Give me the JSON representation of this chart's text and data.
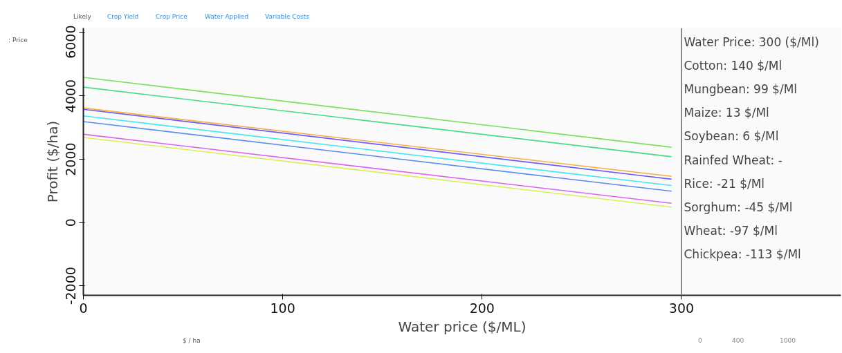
{
  "chart_data": {
    "type": "line",
    "xlabel": "Water price ($/ML)",
    "ylabel": "Profit ($/ha)",
    "x": [
      0,
      295
    ],
    "series": [
      {
        "color": "#7be05a",
        "values": [
          4590,
          2380
        ]
      },
      {
        "color": "#45d98a",
        "values": [
          4280,
          2080
        ]
      },
      {
        "color": "#f5b041",
        "values": [
          3620,
          1460
        ]
      },
      {
        "color": "#6a5cff",
        "values": [
          3580,
          1370
        ]
      },
      {
        "color": "#40e8f0",
        "values": [
          3370,
          1170
        ]
      },
      {
        "color": "#5b8cf0",
        "values": [
          3190,
          990
        ]
      },
      {
        "color": "#e060f0",
        "values": [
          2790,
          610
        ]
      },
      {
        "color": "#d8f050",
        "values": [
          2690,
          490
        ]
      }
    ],
    "xlim": [
      0,
      380
    ],
    "ylim": [
      -2300,
      6150
    ],
    "ref_lines": [
      {
        "axis": "x",
        "value": 300,
        "color": "#888888"
      }
    ],
    "xticks": [
      0,
      100,
      200,
      300
    ],
    "yticks": [
      -2000,
      0,
      2000,
      4000,
      6000
    ],
    "grid": false,
    "marker": "none",
    "line_style": "solid",
    "annotations": [
      "Likely",
      "Crop Yield",
      "Crop Price",
      "Water Applied",
      "Variable Costs",
      ": Price",
      "Water Price: 300 ($/Ml)",
      "Cotton: 140 $/Ml",
      "Mungbean: 99 $/Ml",
      "Maize: 13 $/Ml",
      "Soybean: 6 $/Ml",
      "Rainfed Wheat: -",
      "Rice: -21 $/Ml",
      "Sorghum: -45 $/Ml",
      "Wheat: -97 $/Ml",
      "Chickpea: -113 $/Ml",
      "$ / ha",
      "0",
      "400",
      "1000"
    ]
  }
}
